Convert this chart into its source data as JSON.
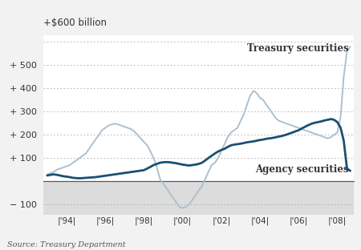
{
  "title": "+$600 billion",
  "source": "Source: Treasury Department",
  "yticks": [
    -100,
    0,
    100,
    200,
    300,
    400,
    500,
    600
  ],
  "ytick_labels": [
    "− 100",
    "",
    "+ 100",
    "+ 200",
    "+ 300",
    "+ 400",
    "+ 500",
    ""
  ],
  "ylim": [
    -145,
    630
  ],
  "xlim_start": 1992.8,
  "xlim_end": 2008.85,
  "xtick_positions": [
    1994,
    1996,
    1998,
    2000,
    2002,
    2004,
    2006,
    2008
  ],
  "xtick_labels": [
    "'94",
    "'96",
    "'98",
    "'00",
    "'02",
    "'04",
    "'06",
    "'08"
  ],
  "bg_color": "#f2f2f2",
  "plot_bg_above": "#ffffff",
  "plot_bg_below": "#dcdcdc",
  "treasury_color": "#adc0cc",
  "agency_color": "#1b4f72",
  "treasury_label": "Treasury securities",
  "agency_label": "Agency securities",
  "treasury_x": [
    1993.0,
    1993.17,
    1993.33,
    1993.5,
    1993.67,
    1993.83,
    1994.0,
    1994.17,
    1994.33,
    1994.5,
    1994.67,
    1994.83,
    1995.0,
    1995.17,
    1995.33,
    1995.5,
    1995.67,
    1995.83,
    1996.0,
    1996.17,
    1996.33,
    1996.5,
    1996.67,
    1996.83,
    1997.0,
    1997.17,
    1997.33,
    1997.5,
    1997.67,
    1997.83,
    1998.0,
    1998.17,
    1998.33,
    1998.5,
    1998.67,
    1998.83,
    1999.0,
    1999.17,
    1999.33,
    1999.5,
    1999.67,
    1999.83,
    2000.0,
    2000.17,
    2000.33,
    2000.5,
    2000.67,
    2000.83,
    2001.0,
    2001.17,
    2001.33,
    2001.5,
    2001.67,
    2001.83,
    2002.0,
    2002.17,
    2002.33,
    2002.5,
    2002.67,
    2002.83,
    2003.0,
    2003.17,
    2003.33,
    2003.5,
    2003.67,
    2003.83,
    2004.0,
    2004.17,
    2004.33,
    2004.5,
    2004.67,
    2004.83,
    2005.0,
    2005.17,
    2005.33,
    2005.5,
    2005.67,
    2005.83,
    2006.0,
    2006.17,
    2006.33,
    2006.5,
    2006.67,
    2006.83,
    2007.0,
    2007.17,
    2007.33,
    2007.5,
    2007.67,
    2007.83,
    2008.0,
    2008.17,
    2008.33,
    2008.5,
    2008.67
  ],
  "treasury_y": [
    30,
    35,
    40,
    50,
    55,
    60,
    65,
    70,
    80,
    90,
    100,
    110,
    120,
    140,
    160,
    180,
    200,
    220,
    230,
    240,
    245,
    248,
    245,
    240,
    235,
    230,
    225,
    215,
    200,
    185,
    170,
    155,
    130,
    100,
    60,
    10,
    -10,
    -30,
    -50,
    -70,
    -90,
    -110,
    -115,
    -110,
    -100,
    -80,
    -60,
    -40,
    -20,
    10,
    40,
    70,
    80,
    100,
    130,
    160,
    190,
    210,
    220,
    230,
    260,
    290,
    330,
    370,
    390,
    380,
    360,
    350,
    330,
    310,
    290,
    270,
    260,
    255,
    250,
    245,
    240,
    235,
    230,
    225,
    220,
    215,
    210,
    205,
    200,
    195,
    190,
    185,
    190,
    200,
    210,
    280,
    450,
    560,
    580
  ],
  "agency_x": [
    1993.0,
    1993.17,
    1993.33,
    1993.5,
    1993.67,
    1993.83,
    1994.0,
    1994.17,
    1994.33,
    1994.5,
    1994.67,
    1994.83,
    1995.0,
    1995.17,
    1995.33,
    1995.5,
    1995.67,
    1995.83,
    1996.0,
    1996.17,
    1996.33,
    1996.5,
    1996.67,
    1996.83,
    1997.0,
    1997.17,
    1997.33,
    1997.5,
    1997.67,
    1997.83,
    1998.0,
    1998.17,
    1998.33,
    1998.5,
    1998.67,
    1998.83,
    1999.0,
    1999.17,
    1999.33,
    1999.5,
    1999.67,
    1999.83,
    2000.0,
    2000.17,
    2000.33,
    2000.5,
    2000.67,
    2000.83,
    2001.0,
    2001.17,
    2001.33,
    2001.5,
    2001.67,
    2001.83,
    2002.0,
    2002.17,
    2002.33,
    2002.5,
    2002.67,
    2002.83,
    2003.0,
    2003.17,
    2003.33,
    2003.5,
    2003.67,
    2003.83,
    2004.0,
    2004.17,
    2004.33,
    2004.5,
    2004.67,
    2004.83,
    2005.0,
    2005.17,
    2005.33,
    2005.5,
    2005.67,
    2005.83,
    2006.0,
    2006.17,
    2006.33,
    2006.5,
    2006.67,
    2006.83,
    2007.0,
    2007.17,
    2007.33,
    2007.5,
    2007.67,
    2007.83,
    2008.0,
    2008.17,
    2008.33,
    2008.5,
    2008.67
  ],
  "agency_y": [
    25,
    28,
    30,
    28,
    25,
    22,
    20,
    18,
    15,
    14,
    13,
    14,
    15,
    16,
    17,
    18,
    20,
    22,
    24,
    26,
    28,
    30,
    32,
    34,
    36,
    38,
    40,
    42,
    44,
    46,
    48,
    55,
    62,
    70,
    75,
    80,
    82,
    83,
    82,
    80,
    78,
    75,
    72,
    70,
    68,
    70,
    72,
    75,
    80,
    90,
    100,
    110,
    120,
    128,
    135,
    140,
    148,
    155,
    158,
    160,
    162,
    165,
    168,
    170,
    172,
    175,
    178,
    180,
    183,
    185,
    187,
    190,
    193,
    196,
    200,
    205,
    210,
    215,
    220,
    228,
    235,
    242,
    248,
    252,
    255,
    258,
    262,
    265,
    268,
    265,
    255,
    230,
    175,
    55,
    45
  ]
}
